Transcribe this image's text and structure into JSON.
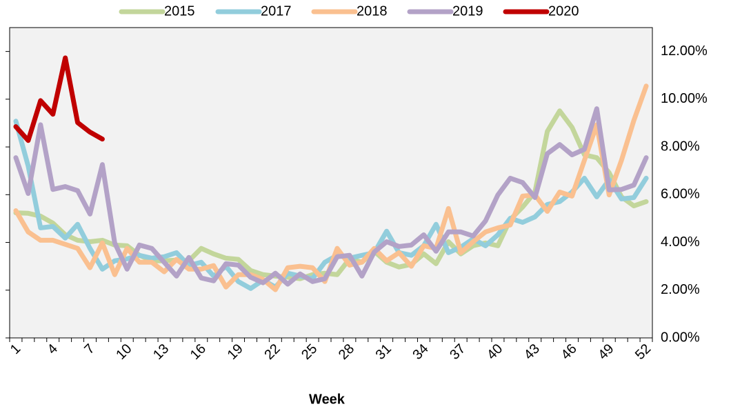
{
  "chart_data": {
    "type": "line",
    "x_label": "Week",
    "categories": [
      "1",
      null,
      null,
      "4",
      null,
      null,
      "7",
      null,
      null,
      "10",
      null,
      null,
      "13",
      null,
      null,
      "16",
      null,
      null,
      "19",
      null,
      null,
      "22",
      null,
      null,
      "25",
      null,
      null,
      "28",
      null,
      null,
      "31",
      null,
      null,
      "34",
      null,
      null,
      "37",
      null,
      null,
      "40",
      null,
      null,
      "43",
      null,
      null,
      "46",
      null,
      null,
      "49",
      null,
      null,
      "52"
    ],
    "ylim": [
      0,
      13
    ],
    "yticks": [
      {
        "value": 0,
        "label": "0.00%"
      },
      {
        "value": 2,
        "label": "2.00%"
      },
      {
        "value": 4,
        "label": "4.00%"
      },
      {
        "value": 6,
        "label": "6.00%"
      },
      {
        "value": 8,
        "label": "8.00%"
      },
      {
        "value": 10,
        "label": "10.00%"
      },
      {
        "value": 12,
        "label": "12.00%"
      }
    ],
    "legend": "top",
    "series": [
      {
        "name": "2015",
        "color": "#c3d69b",
        "values": [
          5.24,
          5.22,
          5.1,
          4.81,
          4.32,
          4.09,
          4.03,
          4.09,
          3.89,
          3.86,
          3.46,
          3.23,
          3.23,
          3.26,
          3.23,
          3.75,
          3.52,
          3.34,
          3.29,
          2.82,
          2.65,
          2.59,
          2.54,
          2.48,
          2.65,
          2.71,
          2.65,
          3.31,
          3.17,
          3.63,
          3.17,
          2.97,
          3.08,
          3.52,
          3.11,
          4.03,
          3.52,
          3.86,
          3.98,
          3.86,
          4.96,
          5.48,
          6.11,
          8.65,
          9.51,
          8.82,
          7.67,
          7.55,
          6.92,
          5.91,
          5.53,
          5.71
        ]
      },
      {
        "name": "2017",
        "color": "#92cddc",
        "values": [
          9.08,
          7.2,
          4.61,
          4.67,
          4.18,
          4.76,
          3.75,
          2.88,
          3.23,
          3.31,
          3.46,
          3.34,
          3.4,
          3.57,
          3.03,
          3.17,
          2.59,
          3.0,
          2.36,
          2.07,
          2.42,
          2.13,
          2.71,
          2.59,
          2.48,
          3.17,
          3.46,
          3.34,
          3.46,
          3.57,
          4.47,
          3.57,
          3.46,
          3.86,
          4.76,
          3.57,
          3.8,
          4.15,
          3.86,
          4.32,
          5.01,
          4.84,
          5.07,
          5.59,
          5.71,
          6.11,
          6.69,
          5.91,
          6.63,
          5.82,
          5.88,
          6.69
        ]
      },
      {
        "name": "2018",
        "color": "#fac090",
        "values": [
          5.33,
          4.44,
          4.09,
          4.09,
          3.92,
          3.75,
          2.94,
          3.98,
          2.65,
          3.75,
          3.17,
          3.17,
          2.77,
          3.29,
          2.88,
          2.88,
          3.03,
          2.13,
          2.65,
          2.65,
          2.45,
          2.02,
          2.94,
          3.0,
          2.94,
          2.36,
          3.75,
          3.05,
          3.17,
          3.75,
          3.23,
          3.57,
          3.0,
          3.86,
          3.75,
          5.42,
          3.57,
          4.03,
          4.44,
          4.61,
          4.73,
          5.94,
          5.99,
          5.3,
          6.11,
          5.94,
          7.44,
          8.93,
          5.99,
          7.44,
          9.11,
          10.55
        ]
      },
      {
        "name": "2019",
        "color": "#b3a2c7",
        "values": [
          7.55,
          6.05,
          8.93,
          6.22,
          6.34,
          6.17,
          5.19,
          7.26,
          3.98,
          2.88,
          3.89,
          3.75,
          3.17,
          2.59,
          3.37,
          2.51,
          2.39,
          3.11,
          3.05,
          2.54,
          2.31,
          2.71,
          2.25,
          2.68,
          2.36,
          2.48,
          3.4,
          3.46,
          2.59,
          3.6,
          4.03,
          3.83,
          3.89,
          4.32,
          3.63,
          4.44,
          4.44,
          4.27,
          4.9,
          5.99,
          6.69,
          6.51,
          5.88,
          7.72,
          8.1,
          7.67,
          7.9,
          9.6,
          6.2,
          6.22,
          6.4,
          7.55
        ]
      },
      {
        "name": "2020",
        "color": "#c00000",
        "values": [
          8.85,
          8.27,
          9.94,
          9.37,
          11.73,
          9.02,
          8.62,
          8.33,
          null,
          null,
          null,
          null,
          null,
          null,
          null,
          null,
          null,
          null,
          null,
          null,
          null,
          null,
          null,
          null,
          null,
          null,
          null,
          null,
          null,
          null,
          null,
          null,
          null,
          null,
          null,
          null,
          null,
          null,
          null,
          null,
          null,
          null,
          null,
          null,
          null,
          null,
          null,
          null,
          null,
          null,
          null,
          null
        ]
      }
    ]
  }
}
